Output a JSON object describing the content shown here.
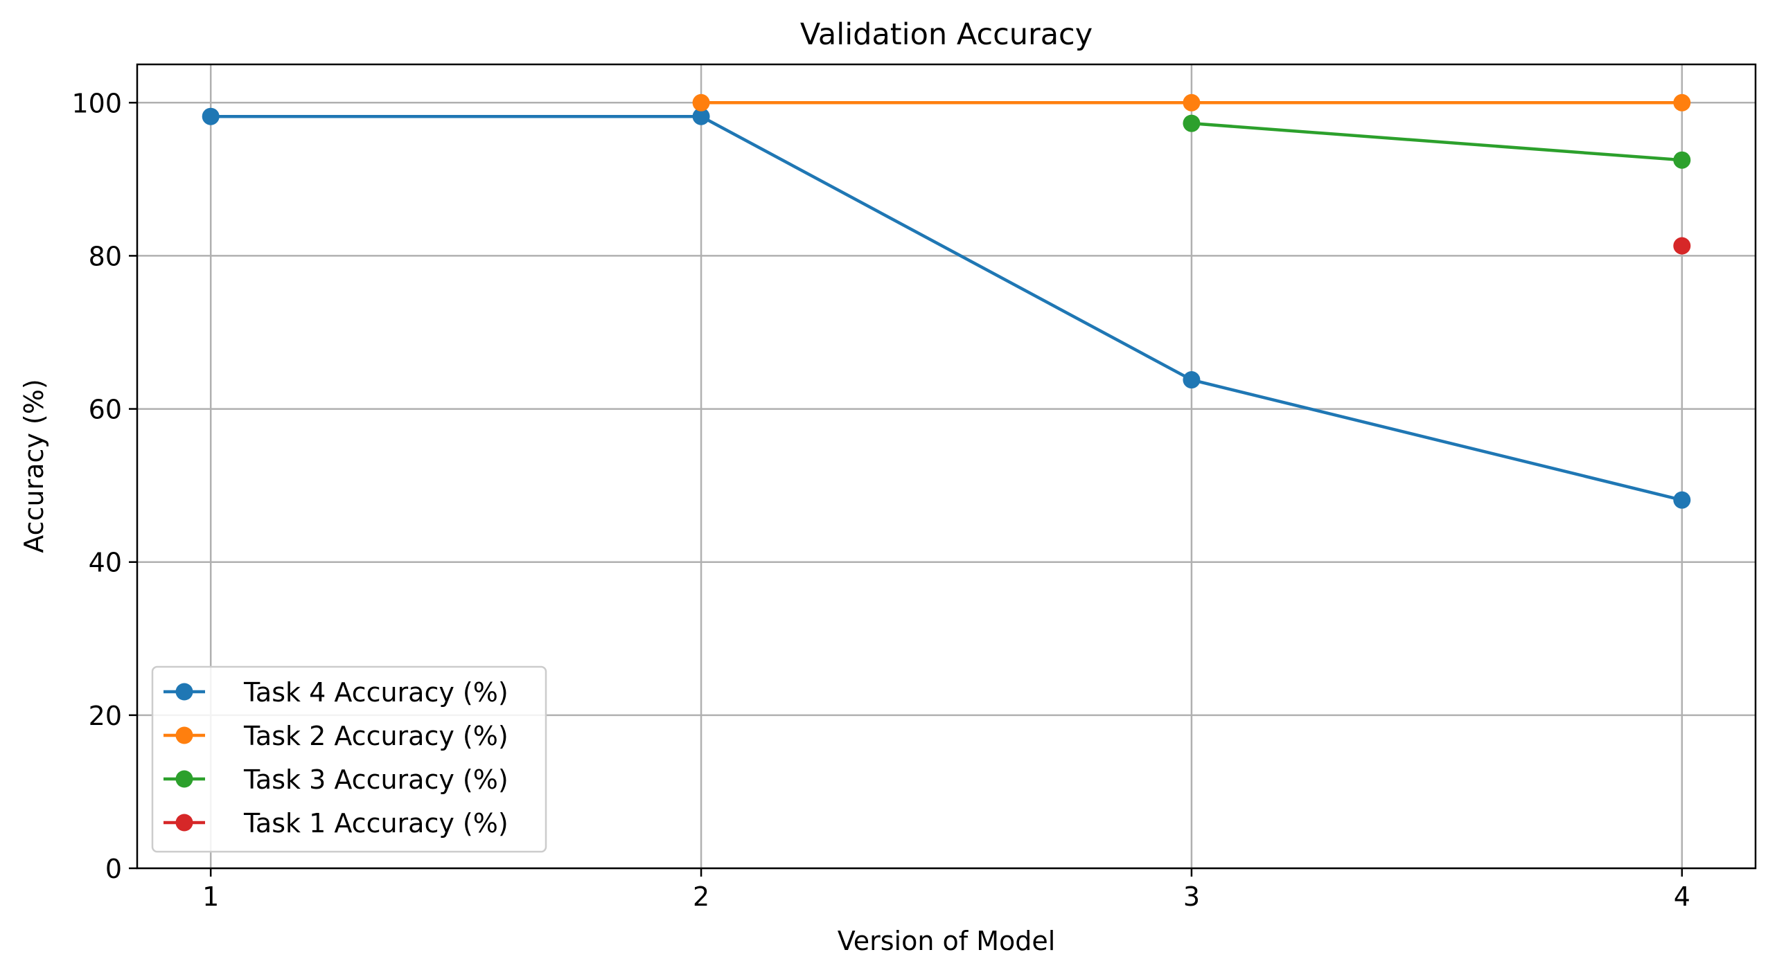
{
  "chart_data": {
    "type": "line",
    "title": "Validation Accuracy",
    "xlabel": "Version of Model",
    "ylabel": "Accuracy (%)",
    "x": [
      1,
      2,
      3,
      4
    ],
    "xticks": [
      "1",
      "2",
      "3",
      "4"
    ],
    "xlim": [
      0.85,
      4.15
    ],
    "ylim": [
      0,
      105
    ],
    "yticks": [
      "0",
      "20",
      "40",
      "60",
      "80",
      "100"
    ],
    "grid": true,
    "legend_position": "lower-left",
    "series": [
      {
        "name": "Task 4 Accuracy (%)",
        "color": "#1f77b4",
        "values": [
          98.2,
          98.2,
          63.8,
          48.1
        ]
      },
      {
        "name": "Task 2 Accuracy (%)",
        "color": "#ff7f0e",
        "values": [
          null,
          100,
          100,
          100
        ]
      },
      {
        "name": "Task 3 Accuracy (%)",
        "color": "#2ca02c",
        "values": [
          null,
          null,
          97.3,
          92.5
        ]
      },
      {
        "name": "Task 1 Accuracy (%)",
        "color": "#d62728",
        "values": [
          null,
          null,
          null,
          81.3
        ]
      }
    ]
  }
}
